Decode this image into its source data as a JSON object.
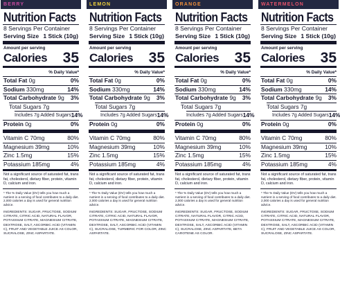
{
  "colors": {
    "header_bg": "#232841",
    "text": "#15162a",
    "berry": "#c94aa0",
    "lemon": "#f2d43a",
    "orange": "#f2903a",
    "watermelon": "#e8536a"
  },
  "common": {
    "title": "Nutrition Facts",
    "servings": "8 Servings Per Container",
    "serving_size_label": "Serving Size",
    "serving_size_value": "1 Stick (10g)",
    "amount_per_serving": "Amount per serving",
    "calories_label": "Calories",
    "calories_value": "35",
    "daily_value_header": "% Daily Value*",
    "rows": {
      "total_fat": {
        "label": "Total Fat",
        "amount": "0g",
        "dv": "0%"
      },
      "sodium": {
        "label": "Sodium",
        "amount": "330mg",
        "dv": "14%"
      },
      "total_carb": {
        "label": "Total Carbohydrate",
        "amount": "9g",
        "dv": "3%"
      },
      "total_sugars": {
        "label": "Total Sugars",
        "amount": "7g"
      },
      "added_sugars": {
        "text": "Includes 7g Added Sugars",
        "dv": "14%"
      },
      "protein": {
        "label": "Protein",
        "amount": "0g",
        "dv": "0%"
      },
      "vitamin_c": {
        "text": "Vitamin C 70mg",
        "dv": "80%"
      },
      "magnesium": {
        "text": "Magnesium 39mg",
        "dv": "10%"
      },
      "zinc": {
        "text": "Zinc 1.5mg",
        "dv": "15%"
      },
      "potassium": {
        "text": "Potassium 185mg",
        "dv": "4%"
      }
    },
    "not_significant": "Not a significant source of saturated fat, trans fat, cholesterol, dietary fiber, protein, vitamin D, calcium and iron.",
    "footnote": "* The % Daily Value (DV) tells you how much a nutrient in a serving of food contributes to a daily diet. 2,000 calories a day is used for general nutrition advice."
  },
  "panels": [
    {
      "flavor": "BERRY",
      "ingredients": "INGREDIENTS: SUGAR, FRUCTOSE, SODIUM CITRATE, CITRIC ACID, NATURAL FLAVOR, POTASSIUM CITRATE, MAGNESIUM CITRATE, DEXTROSE, SALT, ASCORBIC ACID (VITAMIN C), FRUIT AND VEGETABLE JUICE AS COLOR, SUCRALOSE, ZINC ASPARTATE."
    },
    {
      "flavor": "LEMON",
      "ingredients": "INGREDIENTS: SUGAR, FRUCTOSE, SODIUM CITRATE, CITRIC ACID, NATURAL FLAVOR, POTASSIUM CITRATE, MAGNESIUM CITRATE, DEXTROSE, SALT, ASCORBIC ACID (VITAMIN C), SUCRALOSE, TURMERIC FOR COLOR, ZINC ASPARTATE."
    },
    {
      "flavor": "ORANGE",
      "ingredients": "INGREDIENTS: SUGAR, FRUCTOSE, SODIUM CITRATE, NATURAL FLAVOR, CITRIC ACID, POTASSIUM CITRATE, MAGNESIUM CITRATE, DEXTROSE, SALT, ASCORBIC ACID (VITAMIN C), SUCRALOSE, ZINC ASPARTATE, BETA CAROTENE AS COLOR."
    },
    {
      "flavor": "WATERMELON",
      "ingredients": "INGREDIENTS: SUGAR, FRUCTOSE, SODIUM CITRATE, CITRIC ACID, NATURAL FLAVOR, POTASSIUM CITRATE, MAGNESIUM CITRATE, DEXTROSE, SALT, ASCORBIC ACID (VITAMIN C), FRUIT AND VEGETABLE JUICE AS COLOR, SUCRALOSE, ZINC ASPARTATE."
    }
  ]
}
